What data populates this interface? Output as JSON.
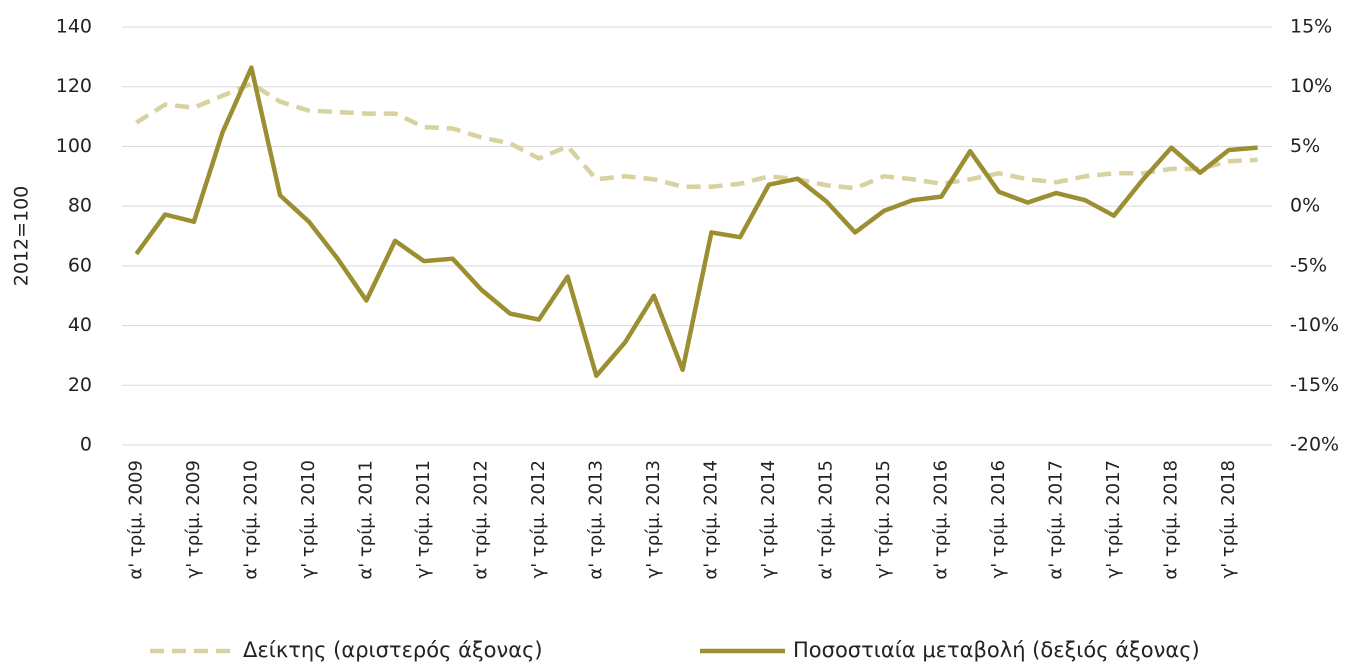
{
  "chart_data": {
    "type": "line",
    "categories": [
      "α' τρίμ. 2009",
      null,
      "γ' τρίμ. 2009",
      null,
      "α' τρίμ. 2010",
      null,
      "γ' τρίμ. 2010",
      null,
      "α' τρίμ. 2011",
      null,
      "γ' τρίμ. 2011",
      null,
      "α' τρίμ. 2012",
      null,
      "γ' τρίμ. 2012",
      null,
      "α' τρίμ. 2013",
      null,
      "γ' τρίμ. 2013",
      null,
      "α' τρίμ. 2014",
      null,
      "γ' τρίμ. 2014",
      null,
      "α' τρίμ. 2015",
      null,
      "γ' τρίμ. 2015",
      null,
      "α' τρίμ. 2016",
      null,
      "γ' τρίμ. 2016",
      null,
      "α' τρίμ. 2017",
      null,
      "γ' τρίμ. 2017",
      null,
      "α' τρίμ. 2018",
      null,
      "γ' τρίμ. 2018",
      null
    ],
    "series": [
      {
        "name": "Δείκτης (αριστερός άξονας)",
        "color": "#d8d1a0",
        "dashed": true,
        "values": [
          108,
          114,
          113,
          117,
          121,
          115,
          112,
          111.5,
          111,
          111,
          106.5,
          106,
          103,
          101,
          96,
          100,
          89,
          90,
          89,
          86.5,
          86.5,
          87.5,
          90,
          89,
          87,
          86,
          90,
          89,
          87.5,
          89,
          91,
          89,
          88,
          90,
          91,
          91,
          92.5,
          92.5,
          95,
          95.5
        ]
      },
      {
        "name": "Ποσοστιαία μεταβολή (δεξιός άξονας)",
        "color": "#9c8f32",
        "axis": "y2",
        "values": [
          -4.0,
          -0.7,
          -1.3,
          6.2,
          11.6,
          0.9,
          -1.3,
          -4.4,
          -7.9,
          -2.9,
          -4.6,
          -4.4,
          -7.0,
          -9.0,
          -9.5,
          -5.9,
          -14.2,
          -11.4,
          -7.5,
          -13.7,
          -2.2,
          -2.6,
          1.8,
          2.3,
          0.4,
          -2.2,
          -0.4,
          0.5,
          0.8,
          4.6,
          1.2,
          0.3,
          1.1,
          0.5,
          -0.8,
          2.2,
          4.9,
          2.8,
          4.7,
          4.9
        ]
      }
    ],
    "y_label": "2012=100",
    "ylim": [
      0,
      140
    ],
    "yticks": [
      0,
      20,
      40,
      60,
      80,
      100,
      120,
      140
    ],
    "y2lim": [
      -20,
      15
    ],
    "y2ticks": [
      {
        "value": -20,
        "label": "-20%"
      },
      {
        "value": -15,
        "label": "-15%"
      },
      {
        "value": -10,
        "label": "-10%"
      },
      {
        "value": -5,
        "label": "-5%"
      },
      {
        "value": 0,
        "label": "0%"
      },
      {
        "value": 5,
        "label": "5%"
      },
      {
        "value": 10,
        "label": "10%"
      },
      {
        "value": 15,
        "label": "15%"
      }
    ],
    "grid": true,
    "legend": "bottom"
  }
}
